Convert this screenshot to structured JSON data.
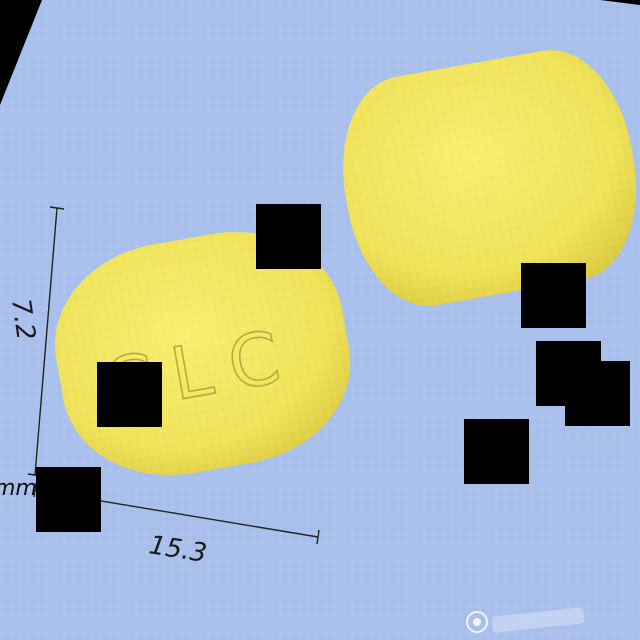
{
  "labels": {
    "width_value": "15.3",
    "height_value": "7.2",
    "unit": "mm",
    "imprint": "CLC"
  },
  "colors": {
    "background": "#a9c0ec",
    "pill": "#f2e75d",
    "pill_shadow": "#d8c83a",
    "border": "#000000"
  }
}
